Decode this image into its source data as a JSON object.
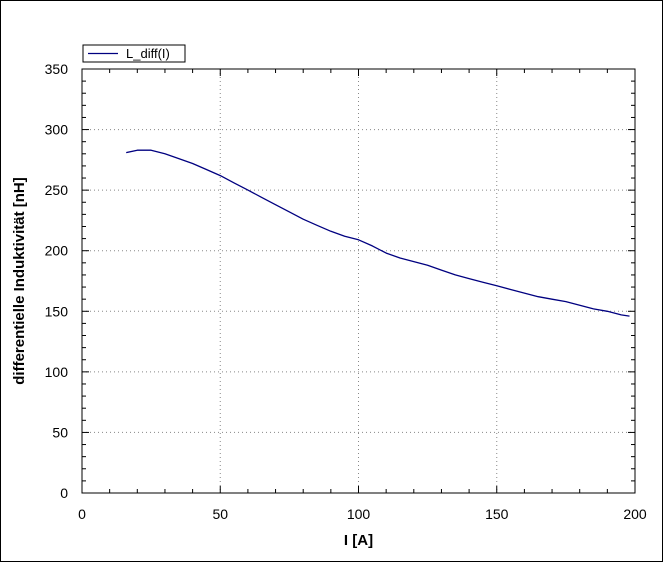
{
  "chart_data": {
    "type": "line",
    "xlabel": "I [A]",
    "ylabel": "differentielle Induktivität [nH]",
    "xlim": [
      0,
      200
    ],
    "ylim": [
      0,
      350
    ],
    "xticks": [
      0,
      50,
      100,
      150,
      200
    ],
    "yticks": [
      0,
      50,
      100,
      150,
      200,
      250,
      300,
      350
    ],
    "grid": true,
    "legend_position": "top-left",
    "series": [
      {
        "name": "L_diff(I)",
        "color": "#000080",
        "x": [
          16,
          20,
          25,
          30,
          35,
          40,
          45,
          50,
          55,
          60,
          65,
          70,
          75,
          80,
          85,
          90,
          95,
          100,
          105,
          110,
          115,
          120,
          125,
          130,
          135,
          140,
          145,
          150,
          155,
          160,
          165,
          170,
          175,
          180,
          185,
          190,
          195,
          198
        ],
        "y": [
          281,
          283,
          283,
          280,
          276,
          272,
          267,
          262,
          256,
          250,
          244,
          238,
          232,
          226,
          221,
          216,
          212,
          209,
          204,
          198,
          194,
          191,
          188,
          184,
          180,
          177,
          174,
          171,
          168,
          165,
          162,
          160,
          158,
          155,
          152,
          150,
          147,
          146
        ]
      }
    ]
  }
}
